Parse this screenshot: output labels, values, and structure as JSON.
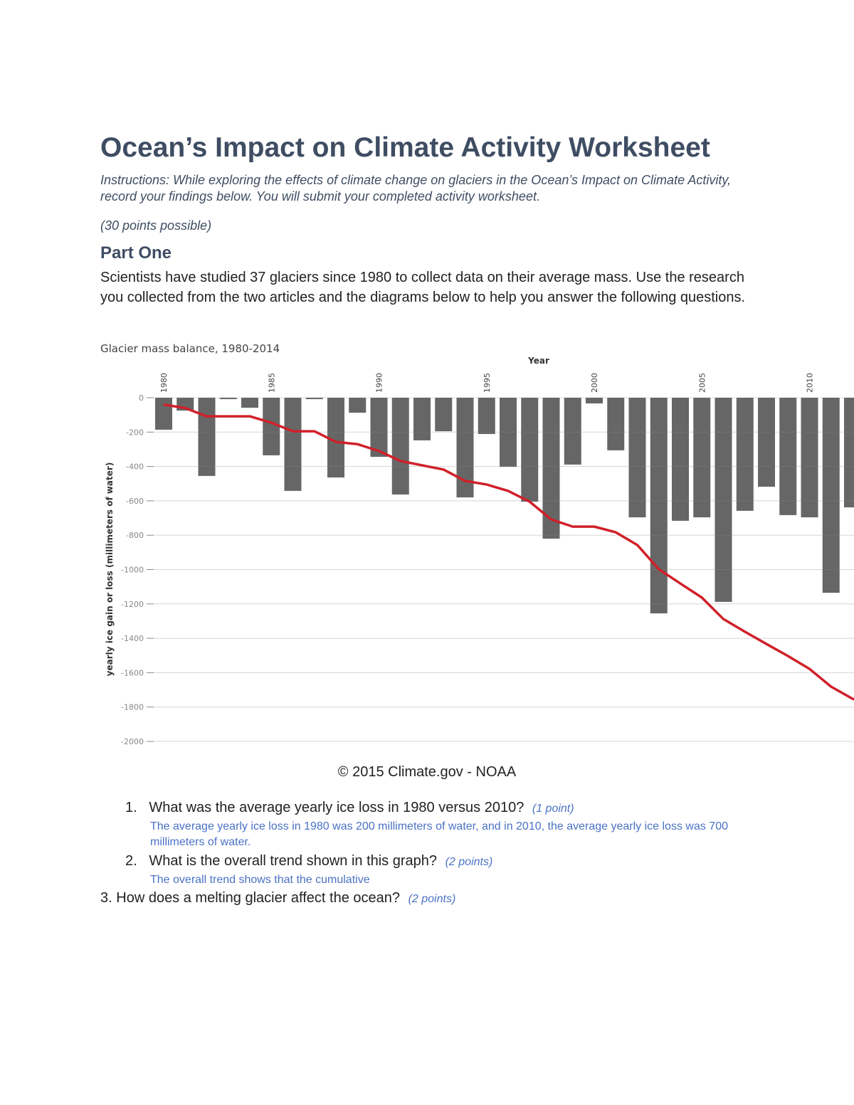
{
  "title": "Ocean’s Impact on Climate Activity Worksheet",
  "instructions": "Instructions: While exploring the effects of climate change on glaciers in the Ocean’s Impact on Climate Activity, record your findings below. You will submit your completed activity worksheet.",
  "points_possible": "(30 points possible)",
  "part_heading": "Part One",
  "intro": "Scientists have studied 37 glaciers since 1980 to collect data on their average mass. Use the research you collected from the two articles and the diagrams below to help you answer the following questions.",
  "credit": "© 2015 Climate.gov - NOAA",
  "questions": [
    {
      "number": "1.",
      "text": "What was the average yearly ice loss in 1980 versus 2010?",
      "points": "(1 point)",
      "answer": "The average yearly ice loss in 1980 was 200 millimeters of water, and in 2010, the average yearly ice loss was 700 millimeters of water."
    },
    {
      "number": "2.",
      "text": "What is the overall trend shown in this graph?",
      "points": "(2 points)",
      "answer": "The overall trend shows that the cumulative"
    },
    {
      "number": "3.",
      "text": "How does a melting glacier affect the ocean?",
      "points": "(2 points)"
    }
  ],
  "chart_data": {
    "type": "bar",
    "title": "Glacier mass balance, 1980-2014",
    "xlabel": "Year",
    "ylabel": "yearly ice gain or loss (millimeters of water)",
    "ylim": [
      -2000,
      0
    ],
    "yticks": [
      0,
      -200,
      -400,
      -600,
      -800,
      -1000,
      -1200,
      -1400,
      -1600,
      -1800,
      -2000
    ],
    "xticks": [
      1980,
      1985,
      1990,
      1995,
      2000,
      2005,
      2010
    ],
    "categories": [
      1980,
      1981,
      1982,
      1983,
      1984,
      1985,
      1986,
      1987,
      1988,
      1989,
      1990,
      1991,
      1992,
      1993,
      1994,
      1995,
      1996,
      1997,
      1998,
      1999,
      2000,
      2001,
      2002,
      2003,
      2004,
      2005,
      2006,
      2007,
      2008,
      2009,
      2010,
      2011,
      2012
    ],
    "series": [
      {
        "type": "bar",
        "color": "#666666",
        "values": [
          -186,
          -75,
          -455,
          -8,
          -58,
          -335,
          -542,
          -8,
          -464,
          -87,
          -344,
          -563,
          -248,
          -195,
          -580,
          -211,
          -402,
          -605,
          -820,
          -389,
          -33,
          -306,
          -696,
          -1255,
          -716,
          -696,
          -1188,
          -658,
          -518,
          -683,
          -696,
          -1135,
          -638
        ]
      },
      {
        "type": "line",
        "color": "#d0202a",
        "values": [
          -40,
          -60,
          -108,
          -108,
          -108,
          -145,
          -195,
          -195,
          -257,
          -270,
          -310,
          -368,
          -393,
          -418,
          -484,
          -505,
          -542,
          -605,
          -708,
          -750,
          -750,
          -783,
          -857,
          -998,
          -1081,
          -1163,
          -1288,
          -1362,
          -1433,
          -1503,
          -1578,
          -1681,
          -1752
        ]
      }
    ],
    "grid": "horizontal lines over bars"
  }
}
